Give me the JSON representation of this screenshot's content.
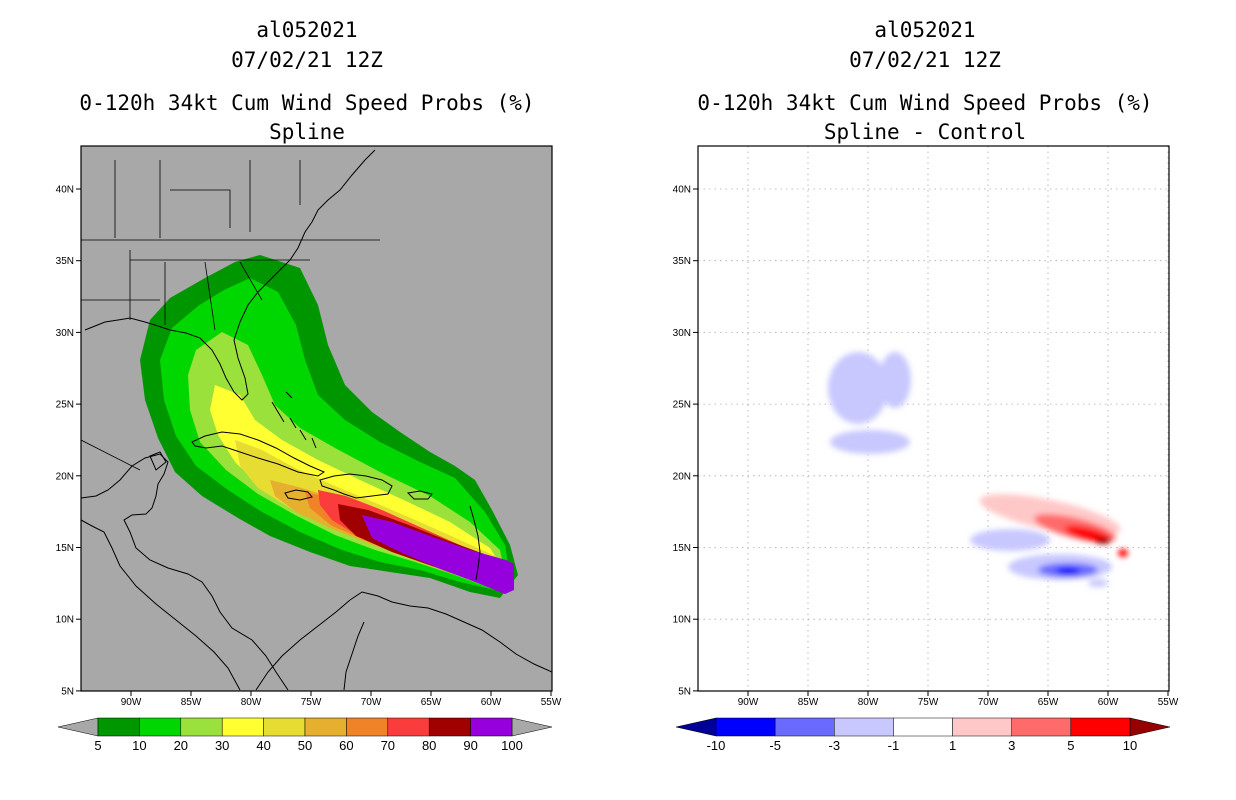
{
  "left_panel": {
    "storm_id": "al052021",
    "datetime": "07/02/21 12Z",
    "title": "0-120h 34kt Cum Wind Speed Probs (%)",
    "subtitle": "Spline",
    "background_color": "#a8a8a8",
    "colorbar": {
      "labels": [
        "5",
        "10",
        "20",
        "30",
        "40",
        "50",
        "60",
        "70",
        "80",
        "90",
        "100"
      ],
      "colors": [
        "#009600",
        "#00d700",
        "#9be13c",
        "#ffff32",
        "#e6dc32",
        "#e6af2d",
        "#f08228",
        "#fa3c3c",
        "#a00000",
        "#9600dc"
      ],
      "end_colors": [
        "#a8a8a8",
        "#a8a8a8"
      ]
    }
  },
  "right_panel": {
    "storm_id": "al052021",
    "datetime": "07/02/21 12Z",
    "title": "0-120h 34kt Cum Wind Speed Probs (%)",
    "subtitle": "Spline - Control",
    "background_color": "#ffffff",
    "colorbar": {
      "labels": [
        "-10",
        "-5",
        "-3",
        "-1",
        "1",
        "3",
        "5",
        "10"
      ],
      "colors": [
        "#0000ff",
        "#6a6aff",
        "#c8c8ff",
        "#ffffff",
        "#ffc8c8",
        "#ff6a6a",
        "#ff0000"
      ],
      "end_colors": [
        "#000096",
        "#960000"
      ]
    }
  },
  "axes": {
    "lat_labels": [
      "40N",
      "35N",
      "30N",
      "25N",
      "20N",
      "15N",
      "10N",
      "5N"
    ],
    "lon_labels": [
      "90W",
      "85W",
      "80W",
      "75W",
      "70W",
      "65W",
      "60W",
      "55W"
    ]
  }
}
